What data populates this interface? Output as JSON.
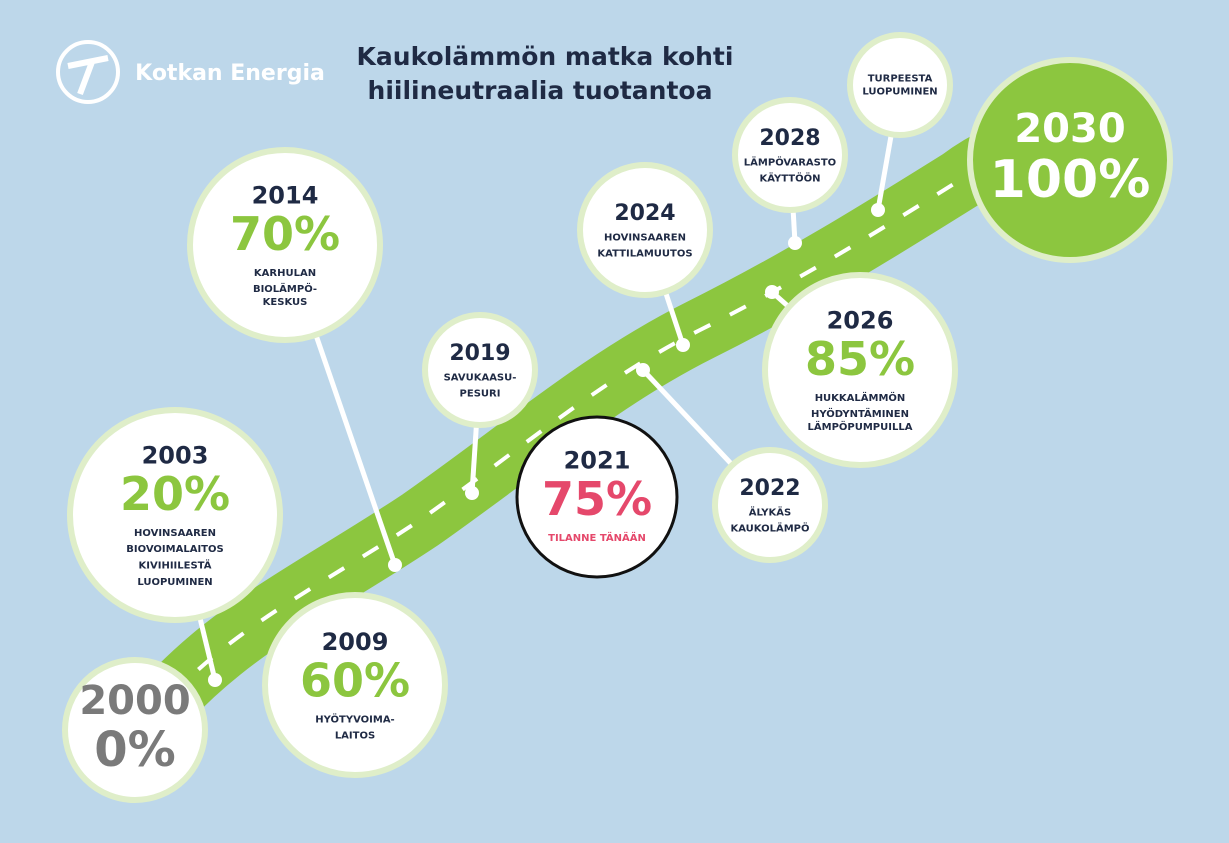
{
  "brand": "Kotkan Energia",
  "title": [
    "Kaukolämmön matka kohti",
    "hiilineutraalia tuotantoa"
  ],
  "milestones": [
    {
      "year": "2000",
      "percent": "0%"
    },
    {
      "year": "2003",
      "percent": "20%",
      "lines": [
        "HOVINSAAREN",
        "BIOVOIMALAITOS",
        "KIVIHIILESTÄ",
        "LUOPUMINEN"
      ]
    },
    {
      "year": "2009",
      "percent": "60%",
      "lines": [
        "HYÖTYVOIMA-",
        "LAITOS"
      ]
    },
    {
      "year": "2014",
      "percent": "70%",
      "lines": [
        "KARHULAN",
        "BIOLÄMPÖ-",
        "KESKUS"
      ]
    },
    {
      "year": "2019",
      "lines": [
        "SAVUKAASU-",
        "PESURI"
      ]
    },
    {
      "year": "2021",
      "percent": "75%",
      "lines": [
        "TILANNE TÄNÄÄN"
      ]
    },
    {
      "year": "2022",
      "lines": [
        "ÄLYKÄS",
        "KAUKOLÄMPÖ"
      ]
    },
    {
      "year": "2024",
      "lines": [
        "HOVINSAAREN",
        "KATTILAMUUTOS"
      ]
    },
    {
      "year": "2026",
      "percent": "85%",
      "lines": [
        "HUKKALÄMMÖN",
        "HYÖDYNTÄMINEN",
        "LÄMPÖPUMPUILLA"
      ]
    },
    {
      "year": "2028",
      "lines": [
        "LÄMPÖVARASTO",
        "KÄYTTÖÖN"
      ]
    },
    {
      "lines": [
        "TURPEESTA",
        "LUOPUMINEN"
      ]
    },
    {
      "year": "2030",
      "percent": "100%"
    }
  ]
}
